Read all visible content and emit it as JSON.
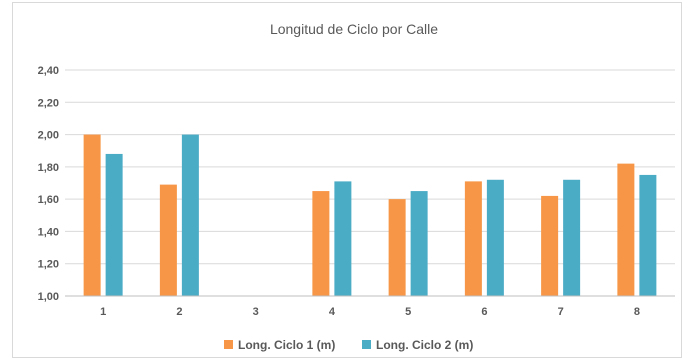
{
  "chart_data": {
    "type": "bar",
    "title": "Longitud de Ciclo por Calle",
    "xlabel": "",
    "ylabel": "",
    "categories": [
      "1",
      "2",
      "3",
      "4",
      "5",
      "6",
      "7",
      "8"
    ],
    "series": [
      {
        "name": "Long. Ciclo 1 (m)",
        "color": "#F79646",
        "values": [
          2.0,
          1.69,
          null,
          1.65,
          1.6,
          1.71,
          1.62,
          1.82
        ]
      },
      {
        "name": "Long. Ciclo 2 (m)",
        "color": "#4BACC6",
        "values": [
          1.88,
          2.0,
          null,
          1.71,
          1.65,
          1.72,
          1.72,
          1.75
        ]
      }
    ],
    "ylim": [
      1.0,
      2.4
    ],
    "yticks": [
      "1,00",
      "1,20",
      "1,40",
      "1,60",
      "1,80",
      "2,00",
      "2,20",
      "2,40"
    ],
    "ytick_values": [
      1.0,
      1.2,
      1.4,
      1.6,
      1.8,
      2.0,
      2.2,
      2.4
    ],
    "grid": true,
    "gridColor": "#d9d9d9",
    "legend": "bottom"
  }
}
